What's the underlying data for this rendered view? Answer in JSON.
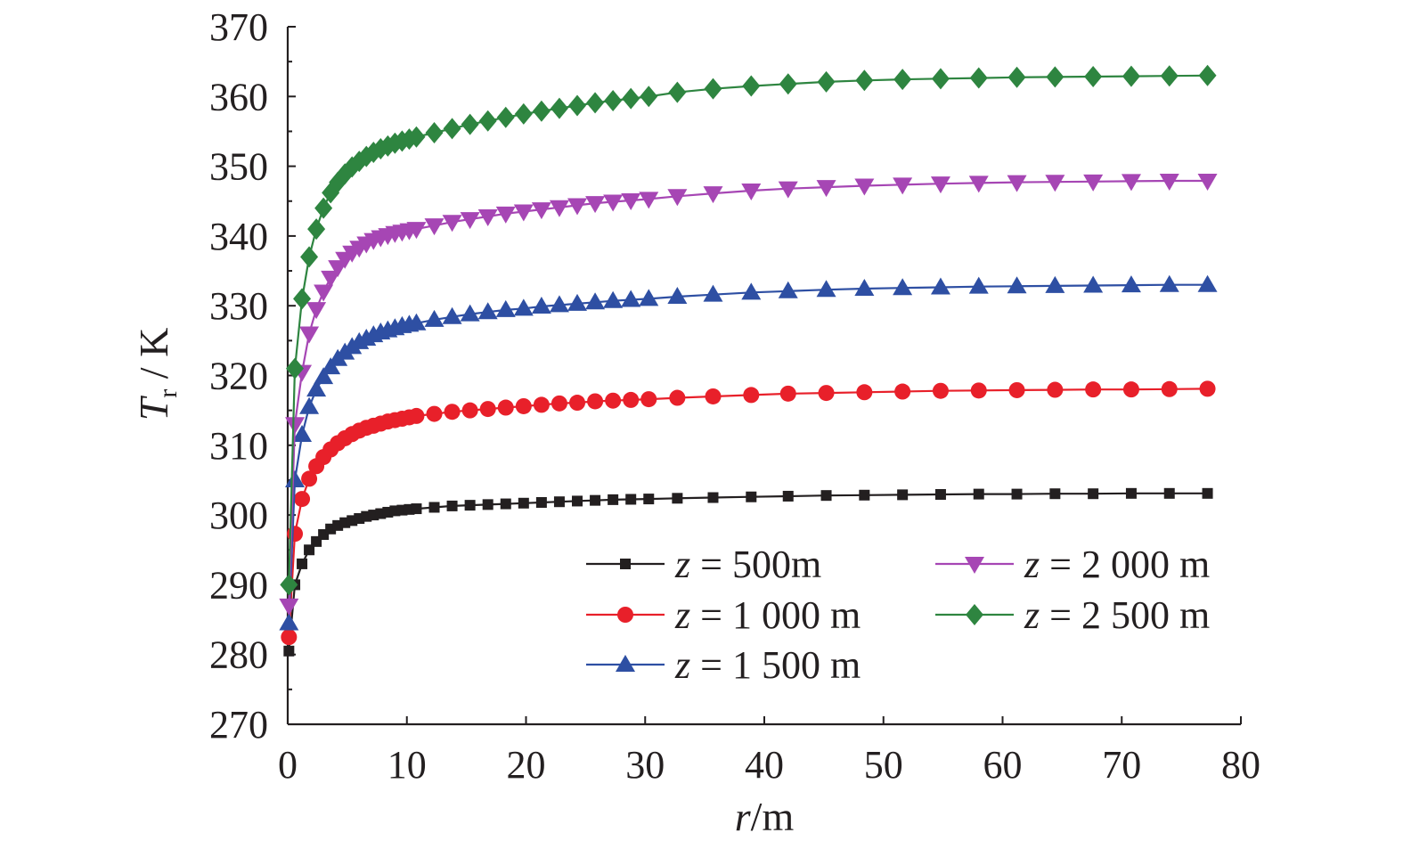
{
  "chart_data": {
    "type": "line",
    "title": "",
    "xlabel": {
      "var": "r",
      "unit": "/m"
    },
    "ylabel": {
      "var": "T",
      "sub": "r",
      "unit": " / K"
    },
    "xlim": [
      0,
      80
    ],
    "ylim": [
      270,
      370
    ],
    "xticks": [
      0,
      10,
      20,
      30,
      40,
      50,
      60,
      70,
      80
    ],
    "yticks": [
      270,
      280,
      290,
      300,
      310,
      320,
      330,
      340,
      350,
      360,
      370
    ],
    "xtick_labels": [
      "0",
      "10",
      "20",
      "30",
      "40",
      "50",
      "60",
      "70",
      "80"
    ],
    "ytick_labels": [
      "270",
      "280",
      "290",
      "300",
      "310",
      "320",
      "330",
      "340",
      "350",
      "360",
      "370"
    ],
    "grid": false,
    "legend_position": "bottom-right",
    "x": [
      0.1,
      0.6,
      1.2,
      1.8,
      2.4,
      3.0,
      3.6,
      4.2,
      4.8,
      5.4,
      6.0,
      6.6,
      7.2,
      7.8,
      8.4,
      9.0,
      9.6,
      10.2,
      10.8,
      12.3,
      13.8,
      15.3,
      16.8,
      18.3,
      19.8,
      21.3,
      22.8,
      24.3,
      25.8,
      27.3,
      28.8,
      30.3,
      32.7,
      35.7,
      38.9,
      42.0,
      45.2,
      48.4,
      51.6,
      54.8,
      58.0,
      61.2,
      64.4,
      67.6,
      70.8,
      74.0,
      77.2
    ],
    "series": [
      {
        "name": "z = 500m",
        "marker": "square",
        "color": "#231f20",
        "values": [
          280.5,
          290,
          293,
          295,
          296.2,
          297.2,
          298,
          298.5,
          298.9,
          299.2,
          299.5,
          299.8,
          300,
          300.2,
          300.4,
          300.6,
          300.7,
          300.8,
          300.9,
          301.1,
          301.3,
          301.4,
          301.5,
          301.6,
          301.7,
          301.8,
          301.9,
          302,
          302.1,
          302.2,
          302.25,
          302.3,
          302.4,
          302.5,
          302.6,
          302.7,
          302.8,
          302.85,
          302.9,
          302.95,
          303,
          303,
          303.05,
          303.05,
          303.1,
          303.1,
          303.1
        ]
      },
      {
        "name": "z = 1 000 m",
        "marker": "circle",
        "color": "#e8202a",
        "values": [
          282.5,
          297.3,
          302.3,
          305.2,
          307,
          308.3,
          309.4,
          310.3,
          311,
          311.6,
          312.1,
          312.5,
          312.8,
          313.1,
          313.4,
          313.6,
          313.8,
          314,
          314.2,
          314.5,
          314.8,
          315,
          315.2,
          315.4,
          315.6,
          315.8,
          316,
          316.1,
          316.3,
          316.4,
          316.5,
          316.6,
          316.8,
          317,
          317.2,
          317.4,
          317.5,
          317.6,
          317.7,
          317.8,
          317.85,
          317.9,
          317.95,
          318,
          318,
          318.05,
          318.1
        ]
      },
      {
        "name": "z = 1 500 m",
        "marker": "triangle-up",
        "color": "#2e4fa3",
        "values": [
          284.5,
          305,
          311.5,
          315.5,
          318,
          319.8,
          321.2,
          322.4,
          323.3,
          324.1,
          324.8,
          325.3,
          325.8,
          326.2,
          326.5,
          326.8,
          327.1,
          327.3,
          327.5,
          328,
          328.4,
          328.8,
          329.1,
          329.4,
          329.6,
          329.9,
          330.1,
          330.3,
          330.5,
          330.7,
          330.85,
          331,
          331.3,
          331.6,
          331.9,
          332.1,
          332.3,
          332.45,
          332.55,
          332.65,
          332.75,
          332.8,
          332.85,
          332.9,
          332.95,
          333,
          333
        ]
      },
      {
        "name": "z = 2 000 m",
        "marker": "triangle-down",
        "color": "#a646b4",
        "values": [
          287,
          313,
          320.5,
          326,
          329.5,
          332,
          334,
          335.5,
          336.7,
          337.6,
          338.3,
          338.9,
          339.4,
          339.8,
          340.1,
          340.4,
          340.6,
          340.8,
          341,
          341.5,
          342,
          342.4,
          342.8,
          343.2,
          343.5,
          343.8,
          344.1,
          344.4,
          344.7,
          344.9,
          345.1,
          345.3,
          345.7,
          346.1,
          346.5,
          346.8,
          347,
          347.2,
          347.35,
          347.5,
          347.6,
          347.7,
          347.75,
          347.8,
          347.85,
          347.9,
          347.9
        ]
      },
      {
        "name": "z = 2 500 m",
        "marker": "diamond",
        "color": "#2e8540",
        "values": [
          290,
          321,
          331,
          337,
          341,
          344,
          346.2,
          347.7,
          348.9,
          349.9,
          350.7,
          351.4,
          352,
          352.5,
          352.9,
          353.3,
          353.6,
          353.9,
          354.2,
          354.8,
          355.4,
          356,
          356.5,
          357,
          357.5,
          357.9,
          358.3,
          358.7,
          359.1,
          359.4,
          359.7,
          360,
          360.6,
          361.1,
          361.5,
          361.8,
          362.1,
          362.3,
          362.45,
          362.55,
          362.65,
          362.75,
          362.8,
          362.85,
          362.9,
          362.95,
          363
        ]
      }
    ]
  }
}
